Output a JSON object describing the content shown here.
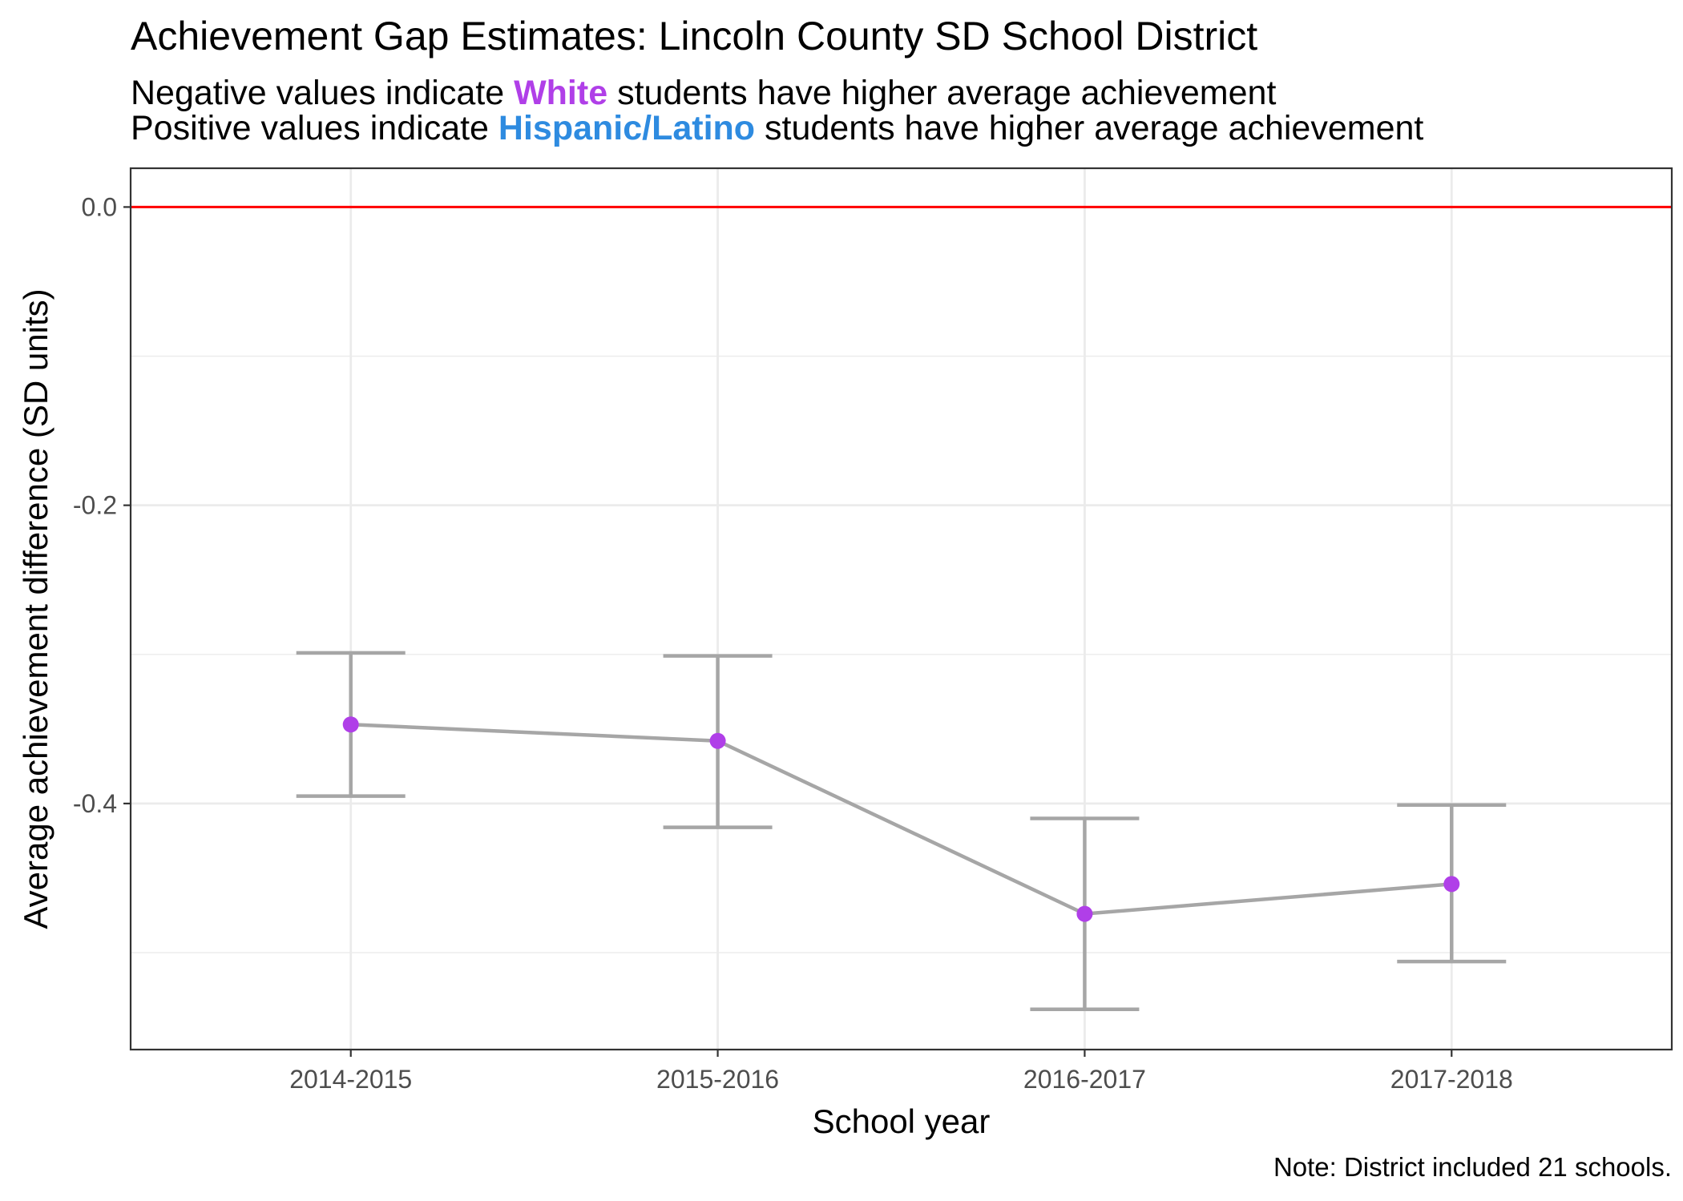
{
  "title": "Achievement Gap Estimates: Lincoln County SD School District",
  "subtitle": {
    "line1": {
      "before": "Negative values indicate",
      "group": "White",
      "after": "students have higher average achievement"
    },
    "line2": {
      "before": "Positive values indicate",
      "group": "Hispanic/Latino",
      "after": "students have higher average achievement"
    }
  },
  "note": "Note: District included 21 schools.",
  "colors": {
    "white_group": "#b03fe8",
    "hispanic_group": "#2e8be0",
    "reference_line": "#ff0000",
    "point": "#b03fe8",
    "line_and_errorbars": "#a6a6a6",
    "grid": "#ebebeb"
  },
  "chart_data": {
    "type": "line",
    "xlabel": "School year",
    "ylabel": "Average achievement difference (SD units)",
    "categories": [
      "2014-2015",
      "2015-2016",
      "2016-2017",
      "2017-2018"
    ],
    "values": [
      -0.347,
      -0.358,
      -0.474,
      -0.454
    ],
    "error_lower": [
      -0.395,
      -0.416,
      -0.538,
      -0.506
    ],
    "error_upper": [
      -0.299,
      -0.301,
      -0.41,
      -0.401
    ],
    "y_ticks": [
      0.0,
      -0.2,
      -0.4
    ],
    "y_tick_labels": [
      "0.0",
      "-0.2",
      "-0.4"
    ],
    "ylim": [
      -0.565,
      0.026
    ],
    "reference_line_y": 0.0,
    "grid": true,
    "legend": "none"
  }
}
